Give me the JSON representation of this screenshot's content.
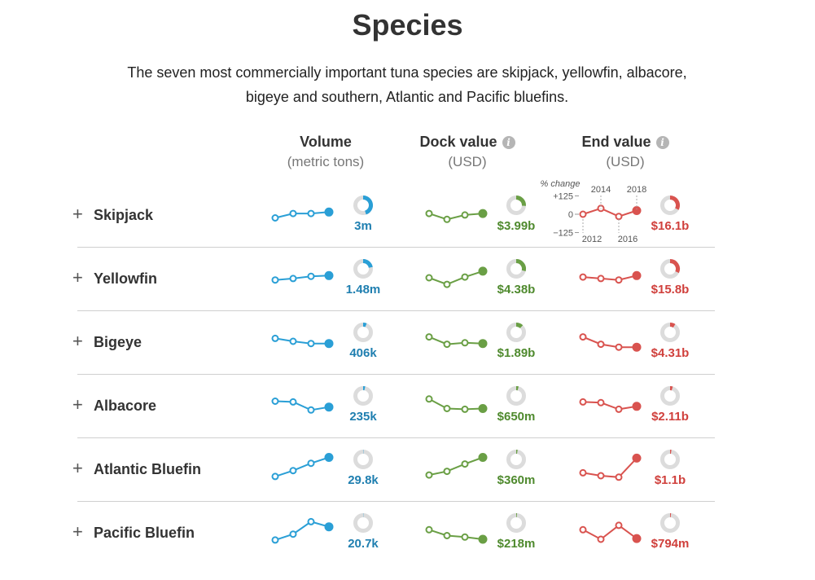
{
  "page": {
    "title": "Species",
    "subtitle_line1": "The seven most commercially important tuna species are skipjack, yellowfin, albacore,",
    "subtitle_line2": "bigeye and southern, Atlantic and Pacific bluefins."
  },
  "columns": {
    "volume": {
      "title": "Volume",
      "unit": "(metric tons)",
      "color": "#2a9fd6",
      "label_color": "#1f7fb0"
    },
    "dock": {
      "title": "Dock value",
      "unit": "(USD)",
      "color": "#6a9f45",
      "label_color": "#4f8a2e"
    },
    "end": {
      "title": "End value",
      "unit": "(USD)",
      "color": "#d9534f",
      "label_color": "#d0403c"
    },
    "info_icon": "info-icon",
    "expand_icon": "plus-icon"
  },
  "legend": {
    "title": "% change",
    "ytick_top": "+125",
    "ytick_mid": "0",
    "ytick_bottom": "−125",
    "years_top": [
      "2014",
      "2018"
    ],
    "years_bottom": [
      "2012",
      "2016"
    ]
  },
  "chart_data": {
    "type": "table",
    "years": [
      2012,
      2014,
      2016,
      2018
    ],
    "sparkline_unit": "% change",
    "sparkline_range": [
      -125,
      125
    ],
    "rows": [
      {
        "species": "Skipjack",
        "volume": {
          "label": "3m",
          "share": 0.45,
          "trend": [
            -25,
            5,
            5,
            15
          ]
        },
        "dock": {
          "label": "$3.99b",
          "share": 0.26,
          "trend": [
            5,
            -35,
            -5,
            5
          ]
        },
        "end": {
          "label": "$16.1b",
          "share": 0.33,
          "trend": [
            0,
            40,
            -15,
            25
          ]
        }
      },
      {
        "species": "Yellowfin",
        "volume": {
          "label": "1.48m",
          "share": 0.22,
          "trend": [
            -15,
            -5,
            10,
            15
          ]
        },
        "dock": {
          "label": "$4.38b",
          "share": 0.29,
          "trend": [
            0,
            -45,
            5,
            45
          ]
        },
        "end": {
          "label": "$15.8b",
          "share": 0.32,
          "trend": [
            5,
            -5,
            -15,
            15
          ]
        }
      },
      {
        "species": "Bigeye",
        "volume": {
          "label": "406k",
          "share": 0.06,
          "trend": [
            20,
            0,
            -15,
            -15
          ]
        },
        "dock": {
          "label": "$1.89b",
          "share": 0.12,
          "trend": [
            30,
            -20,
            -10,
            -15
          ]
        },
        "end": {
          "label": "$4.31b",
          "share": 0.09,
          "trend": [
            30,
            -20,
            -40,
            -40
          ]
        }
      },
      {
        "species": "Albacore",
        "volume": {
          "label": "235k",
          "share": 0.035,
          "trend": [
            25,
            20,
            -35,
            -15
          ]
        },
        "dock": {
          "label": "$650m",
          "share": 0.04,
          "trend": [
            40,
            -25,
            -30,
            -25
          ]
        },
        "end": {
          "label": "$2.11b",
          "share": 0.045,
          "trend": [
            20,
            15,
            -30,
            -10
          ]
        }
      },
      {
        "species": "Atlantic Bluefin",
        "volume": {
          "label": "29.8k",
          "share": 0.005,
          "trend": [
            -55,
            -15,
            35,
            75
          ]
        },
        "dock": {
          "label": "$360m",
          "share": 0.023,
          "trend": [
            -45,
            -20,
            30,
            75
          ]
        },
        "end": {
          "label": "$1.1b",
          "share": 0.022,
          "trend": [
            -30,
            -50,
            -60,
            70
          ]
        }
      },
      {
        "species": "Pacific Bluefin",
        "volume": {
          "label": "20.7k",
          "share": 0.003,
          "trend": [
            -55,
            -15,
            70,
            35
          ]
        },
        "dock": {
          "label": "$218m",
          "share": 0.014,
          "trend": [
            15,
            -25,
            -35,
            -50
          ]
        },
        "end": {
          "label": "$794m",
          "share": 0.016,
          "trend": [
            15,
            -50,
            45,
            -45
          ]
        }
      }
    ]
  }
}
